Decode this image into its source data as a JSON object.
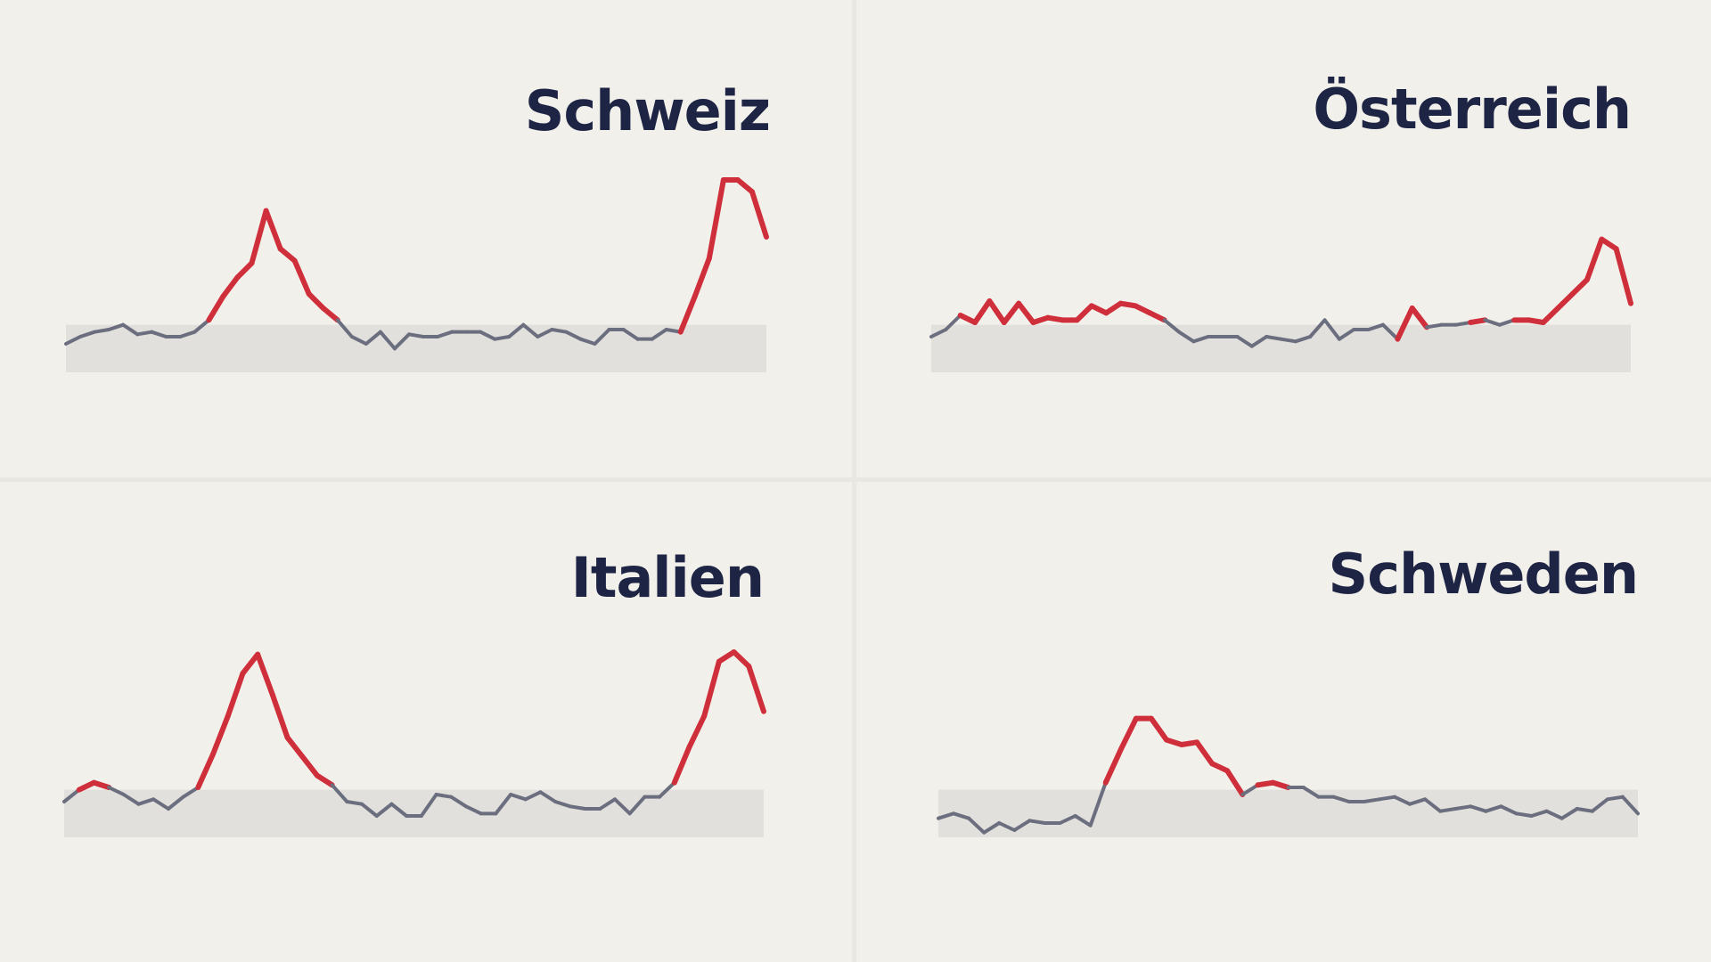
{
  "colors": {
    "background": "#f2f0eb",
    "band": "#e2e0dc",
    "normal_line": "#6b6e7e",
    "excess_line": "#cf2f3a",
    "title": "#1e2444"
  },
  "chart_data": [
    {
      "type": "line",
      "title": "Schweiz",
      "band": [
        0.9,
        1.1
      ],
      "ylim": [
        0.6,
        1.8
      ],
      "values": [
        1.02,
        1.05,
        1.07,
        1.08,
        1.1,
        1.06,
        1.07,
        1.05,
        1.05,
        1.07,
        1.12,
        1.22,
        1.3,
        1.36,
        1.58,
        1.42,
        1.37,
        1.23,
        1.17,
        1.12,
        1.05,
        1.02,
        1.07,
        1.0,
        1.06,
        1.05,
        1.05,
        1.07,
        1.07,
        1.07,
        1.04,
        1.05,
        1.1,
        1.05,
        1.08,
        1.07,
        1.04,
        1.02,
        1.08,
        1.08,
        1.04,
        1.04,
        1.08,
        1.07,
        1.22,
        1.38,
        1.71,
        1.71,
        1.66,
        1.47
      ]
    },
    {
      "type": "line",
      "title": "Österreich",
      "band": [
        0.9,
        1.1
      ],
      "ylim": [
        0.6,
        1.8
      ],
      "values": [
        1.05,
        1.08,
        1.14,
        1.11,
        1.2,
        1.11,
        1.19,
        1.11,
        1.13,
        1.12,
        1.12,
        1.18,
        1.15,
        1.19,
        1.18,
        1.15,
        1.12,
        1.07,
        1.03,
        1.05,
        1.05,
        1.05,
        1.01,
        1.05,
        1.04,
        1.03,
        1.05,
        1.12,
        1.04,
        1.08,
        1.08,
        1.1,
        1.04,
        1.17,
        1.09,
        1.1,
        1.1,
        1.11,
        1.12,
        1.1,
        1.12,
        1.12,
        1.11,
        1.17,
        1.23,
        1.29,
        1.46,
        1.42,
        1.19
      ]
    },
    {
      "type": "line",
      "title": "Italien",
      "band": [
        0.9,
        1.1
      ],
      "ylim": [
        0.6,
        1.8
      ],
      "values": [
        1.05,
        1.1,
        1.13,
        1.11,
        1.08,
        1.04,
        1.06,
        1.02,
        1.07,
        1.11,
        1.25,
        1.41,
        1.59,
        1.67,
        1.5,
        1.32,
        1.24,
        1.16,
        1.12,
        1.05,
        1.04,
        0.99,
        1.04,
        0.99,
        0.99,
        1.08,
        1.07,
        1.03,
        1.0,
        1.0,
        1.08,
        1.06,
        1.09,
        1.05,
        1.03,
        1.02,
        1.02,
        1.06,
        1.0,
        1.07,
        1.07,
        1.13,
        1.28,
        1.41,
        1.64,
        1.68,
        1.62,
        1.43
      ]
    },
    {
      "type": "line",
      "title": "Schweden",
      "band": [
        0.9,
        1.1
      ],
      "ylim": [
        0.6,
        1.8
      ],
      "values": [
        0.98,
        1.0,
        0.98,
        0.92,
        0.96,
        0.93,
        0.97,
        0.96,
        0.96,
        0.99,
        0.95,
        1.13,
        1.27,
        1.4,
        1.4,
        1.31,
        1.29,
        1.3,
        1.21,
        1.18,
        1.08,
        1.12,
        1.13,
        1.11,
        1.11,
        1.07,
        1.07,
        1.05,
        1.05,
        1.06,
        1.07,
        1.04,
        1.06,
        1.01,
        1.02,
        1.03,
        1.01,
        1.03,
        1.0,
        0.99,
        1.01,
        0.98,
        1.02,
        1.01,
        1.06,
        1.07,
        1.0
      ]
    }
  ]
}
